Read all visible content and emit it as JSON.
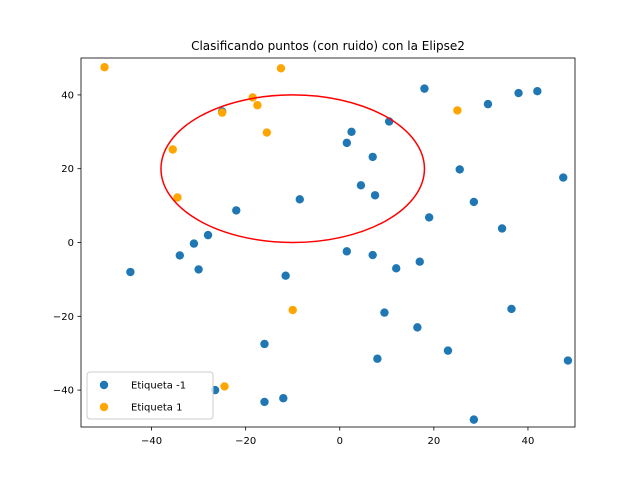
{
  "chart_data": {
    "type": "scatter",
    "title": "Clasificando puntos (con ruido) con la Elipse2",
    "xlabel": "",
    "ylabel": "",
    "xlim": [
      -55,
      50
    ],
    "ylim": [
      -50,
      50
    ],
    "xticks": [
      -40,
      -20,
      0,
      20,
      40
    ],
    "yticks": [
      -40,
      -20,
      0,
      20,
      40
    ],
    "xtick_labels": [
      "−40",
      "−20",
      "0",
      "20",
      "40"
    ],
    "ytick_labels": [
      "−40",
      "−20",
      "0",
      "20",
      "40"
    ],
    "grid": false,
    "legend_position": "lower-left",
    "series": [
      {
        "name": "Etiqueta -1",
        "color": "#1f77b4",
        "points": [
          [
            -44.5,
            -8
          ],
          [
            -34,
            -3.5
          ],
          [
            -31,
            -0.3
          ],
          [
            -30,
            -7.3
          ],
          [
            -28,
            2
          ],
          [
            -26.5,
            -40
          ],
          [
            -25,
            35.5
          ],
          [
            -22,
            8.7
          ],
          [
            -16,
            -27.5
          ],
          [
            -16,
            -43.2
          ],
          [
            -12,
            -42.2
          ],
          [
            -11.5,
            -9
          ],
          [
            -8.5,
            11.7
          ],
          [
            1.5,
            -2.4
          ],
          [
            1.5,
            27
          ],
          [
            2.5,
            30
          ],
          [
            4.5,
            15.5
          ],
          [
            7,
            -3.4
          ],
          [
            7,
            23.2
          ],
          [
            7.5,
            12.8
          ],
          [
            8,
            -31.5
          ],
          [
            9.5,
            -19
          ],
          [
            10.5,
            32.8
          ],
          [
            12,
            -7
          ],
          [
            16.5,
            -23
          ],
          [
            17,
            -5.2
          ],
          [
            18,
            41.7
          ],
          [
            19,
            6.8
          ],
          [
            23,
            -29.3
          ],
          [
            25.5,
            19.8
          ],
          [
            28.5,
            -48
          ],
          [
            28.5,
            11
          ],
          [
            31.5,
            37.5
          ],
          [
            34.5,
            3.8
          ],
          [
            36.5,
            -18
          ],
          [
            38,
            40.5
          ],
          [
            42,
            41
          ],
          [
            47.5,
            17.6
          ],
          [
            48.5,
            -32
          ]
        ]
      },
      {
        "name": "Etiqueta 1",
        "color": "#ffa500",
        "points": [
          [
            -50,
            47.5
          ],
          [
            -35.5,
            25.2
          ],
          [
            -34.5,
            12.2
          ],
          [
            -25,
            35.2
          ],
          [
            -24.5,
            -39
          ],
          [
            -18.5,
            39.3
          ],
          [
            -17.5,
            37.2
          ],
          [
            -15.5,
            29.8
          ],
          [
            -12.5,
            47.2
          ],
          [
            -10,
            -18.3
          ],
          [
            25,
            35.8
          ]
        ]
      }
    ],
    "annotations": [
      {
        "type": "ellipse",
        "center": [
          -10,
          20
        ],
        "width": 56,
        "height": 40,
        "color": "#ff0000"
      }
    ]
  }
}
